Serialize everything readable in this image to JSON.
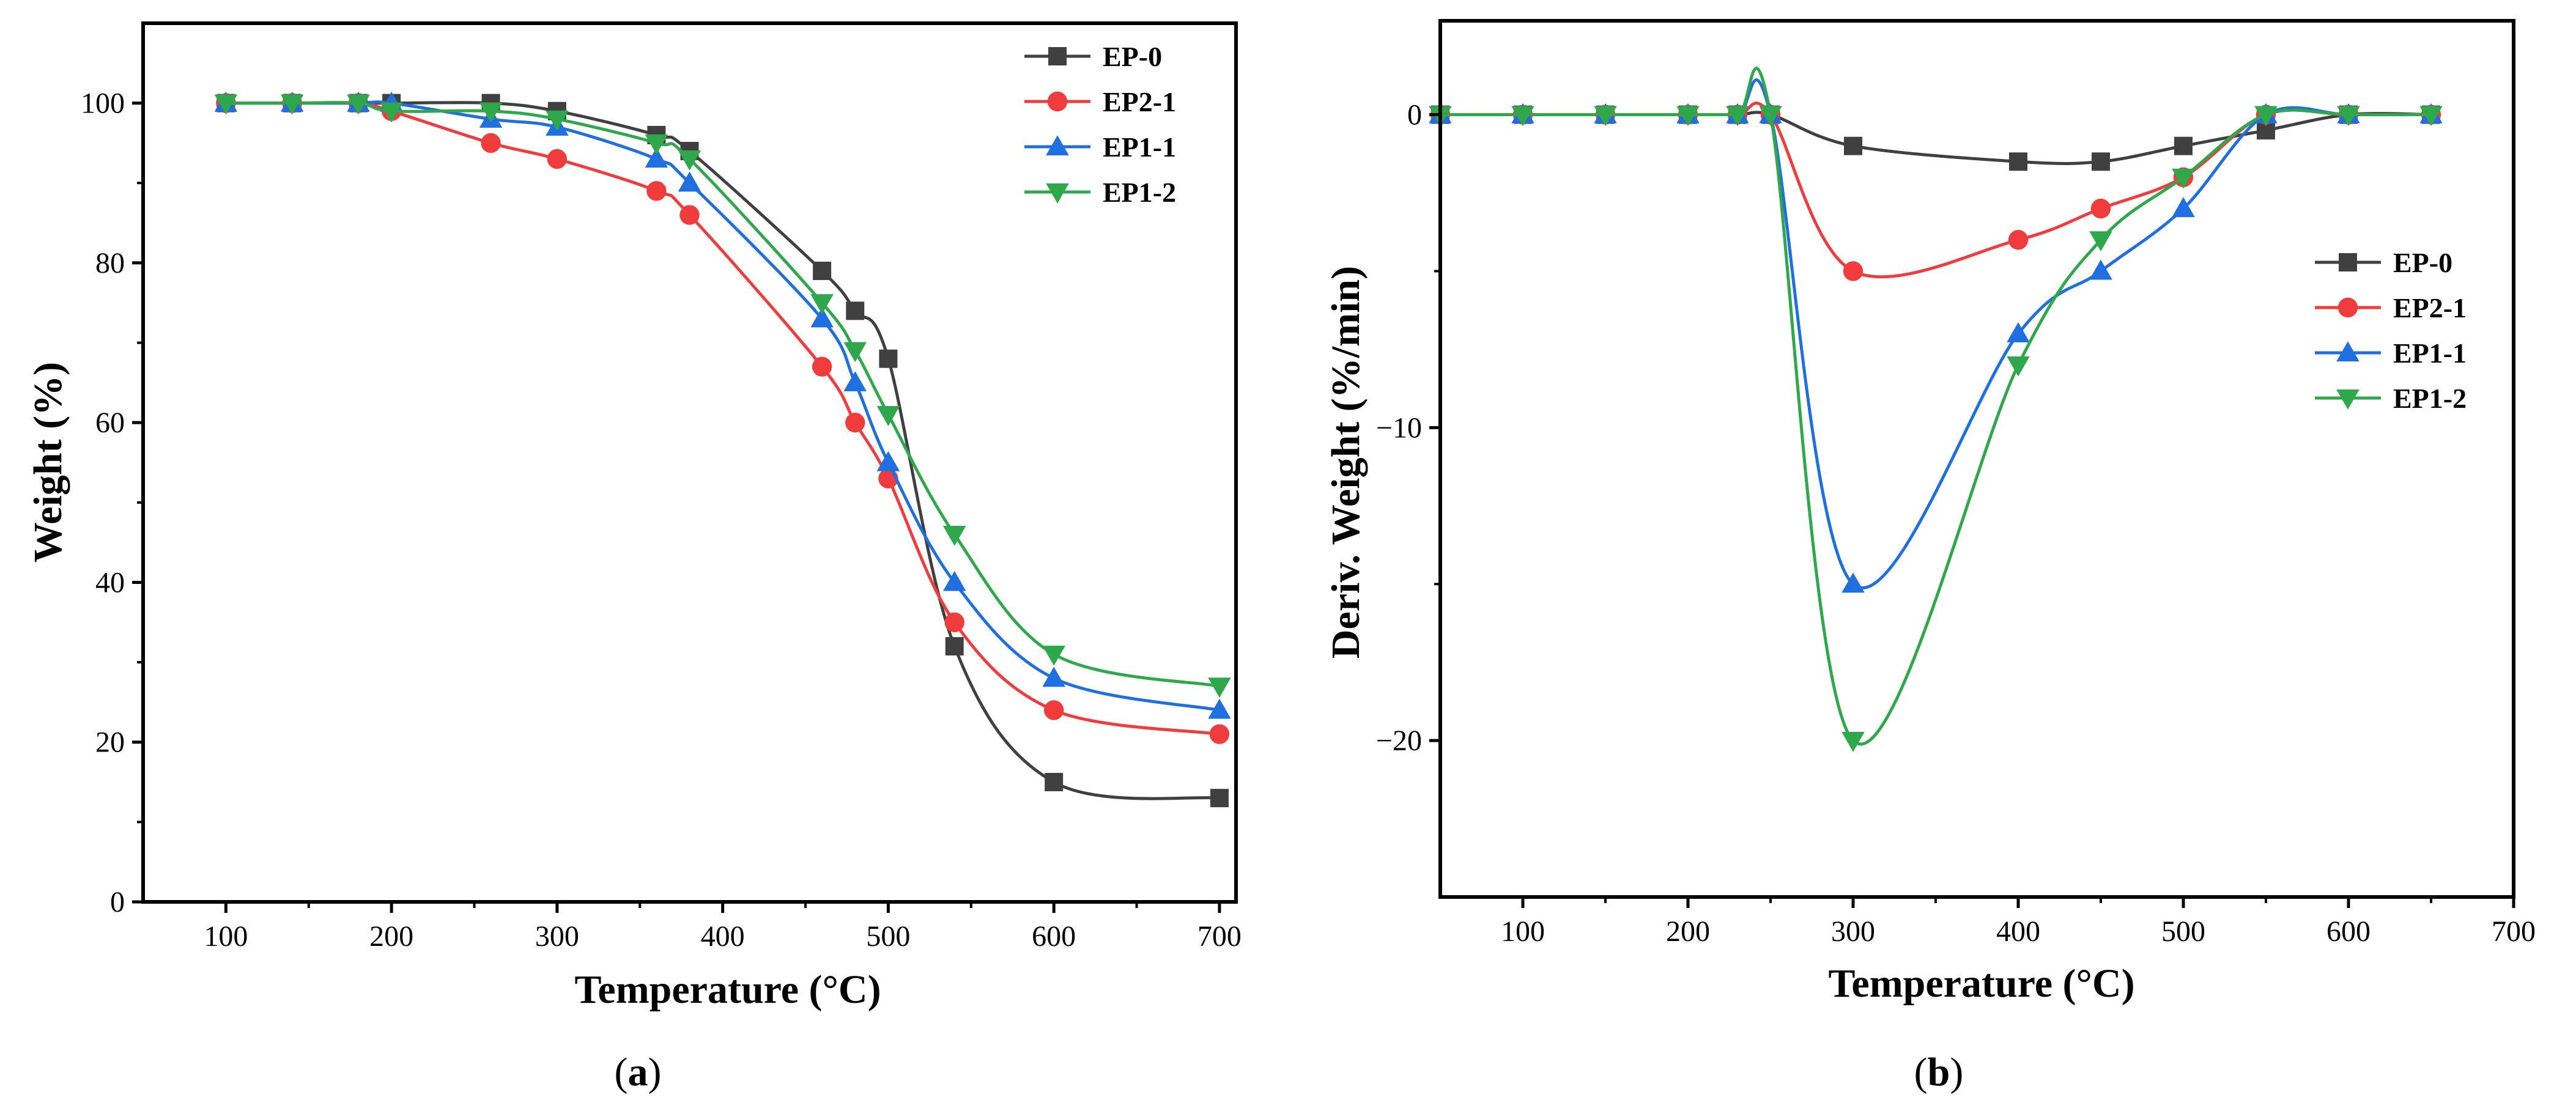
{
  "chart_data": [
    {
      "type": "line",
      "panel_label": "(a)",
      "panel_letter": "a",
      "xlabel": "Temperature (°C)",
      "ylabel": "Weight (%)",
      "xlim": [
        50,
        710
      ],
      "ylim": [
        0,
        110
      ],
      "xticks": [
        100,
        200,
        300,
        400,
        500,
        600,
        700
      ],
      "yticks": [
        0,
        20,
        40,
        60,
        80,
        100
      ],
      "legend_position": "top-right",
      "series": [
        {
          "name": "EP-0",
          "color": "#404040",
          "marker": "square",
          "x": [
            100,
            140,
            180,
            200,
            260,
            300,
            360,
            380,
            460,
            480,
            500,
            540,
            600,
            700
          ],
          "y": [
            100,
            100,
            100,
            100,
            100,
            99,
            96,
            94,
            79,
            74,
            68,
            32,
            15,
            13
          ]
        },
        {
          "name": "EP2-1",
          "color": "#f03c3c",
          "marker": "circle",
          "x": [
            100,
            140,
            180,
            200,
            260,
            300,
            360,
            380,
            460,
            480,
            500,
            540,
            600,
            700
          ],
          "y": [
            100,
            100,
            100,
            99,
            95,
            93,
            89,
            86,
            67,
            60,
            53,
            35,
            24,
            21
          ]
        },
        {
          "name": "EP1-1",
          "color": "#1f6fe0",
          "marker": "triangle-up",
          "x": [
            100,
            140,
            180,
            200,
            260,
            300,
            360,
            380,
            460,
            480,
            500,
            540,
            600,
            700
          ],
          "y": [
            100,
            100,
            100,
            100,
            98,
            97,
            93,
            90,
            73,
            65,
            55,
            40,
            28,
            24
          ]
        },
        {
          "name": "EP1-2",
          "color": "#2ea84b",
          "marker": "triangle-down",
          "x": [
            100,
            140,
            180,
            200,
            260,
            300,
            360,
            380,
            460,
            480,
            500,
            540,
            600,
            700
          ],
          "y": [
            100,
            100,
            100,
            99,
            99,
            98,
            95,
            93,
            75,
            69,
            61,
            46,
            31,
            27
          ]
        }
      ]
    },
    {
      "type": "line",
      "panel_label": "(b)",
      "panel_letter": "b",
      "xlabel": "Temperature (°C)",
      "ylabel": "Deriv. Weight (%/min)",
      "xlim": [
        50,
        700
      ],
      "ylim": [
        -25,
        3
      ],
      "xticks": [
        100,
        200,
        300,
        400,
        500,
        600,
        700
      ],
      "yticks": [
        0,
        -10,
        -20
      ],
      "legend_position": "center-right",
      "series": [
        {
          "name": "EP-0",
          "color": "#404040",
          "marker": "square",
          "x": [
            50,
            100,
            150,
            200,
            230,
            250,
            300,
            400,
            450,
            500,
            550,
            600,
            650
          ],
          "y": [
            0,
            0,
            0,
            0,
            0,
            0,
            -1,
            -1.5,
            -1.5,
            -1,
            -0.5,
            0,
            0
          ]
        },
        {
          "name": "EP2-1",
          "color": "#f03c3c",
          "marker": "circle",
          "x": [
            50,
            100,
            150,
            200,
            230,
            250,
            300,
            400,
            450,
            500,
            550,
            600,
            650
          ],
          "y": [
            0,
            0,
            0,
            0,
            0,
            0,
            -5,
            -4,
            -3,
            -2,
            0,
            0,
            0
          ]
        },
        {
          "name": "EP1-1",
          "color": "#1f6fe0",
          "marker": "triangle-up",
          "x": [
            50,
            100,
            150,
            200,
            230,
            250,
            300,
            400,
            450,
            500,
            550,
            600,
            650
          ],
          "y": [
            0,
            0,
            0,
            0,
            0,
            0,
            -15,
            -7,
            -5,
            -3,
            0,
            0,
            0
          ]
        },
        {
          "name": "EP1-2",
          "color": "#2ea84b",
          "marker": "triangle-down",
          "x": [
            50,
            100,
            150,
            200,
            230,
            250,
            300,
            400,
            450,
            500,
            550,
            600,
            650
          ],
          "y": [
            0,
            0,
            0,
            0,
            0,
            0,
            -20,
            -8,
            -4,
            -2,
            0,
            0,
            0
          ]
        }
      ]
    }
  ]
}
